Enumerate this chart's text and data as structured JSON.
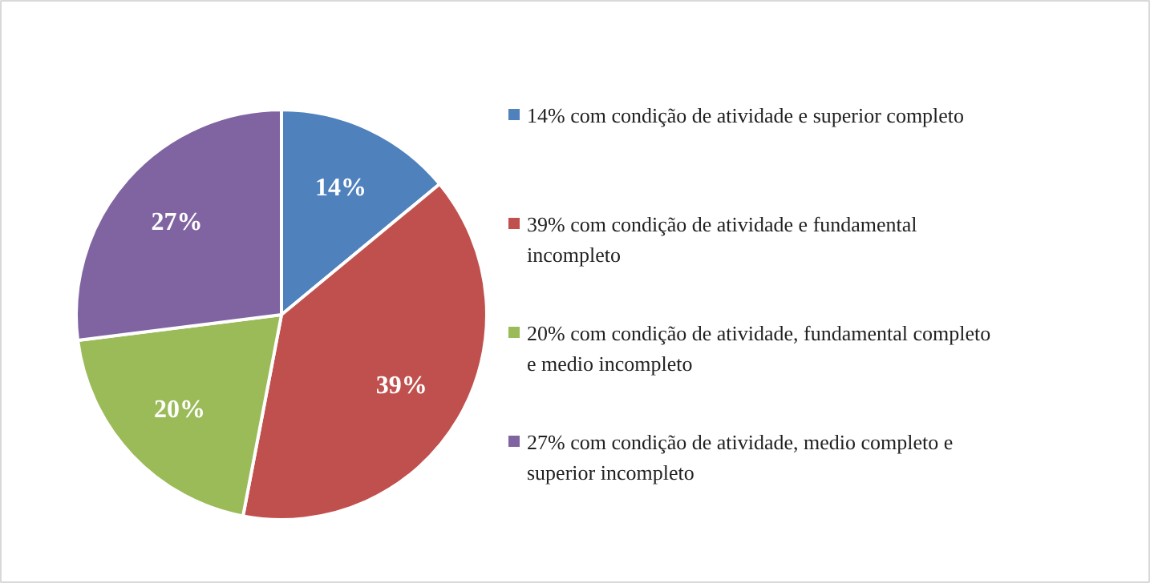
{
  "chart_data": {
    "type": "pie",
    "categories": [
      "14% com condição de atividade e superior completo",
      "39% com condição de atividade e fundamental incompleto",
      "20% com condição de atividade, fundamental completo e medio incompleto",
      "27% com condição de atividade, medio completo e superior incompleto"
    ],
    "values": [
      14,
      39,
      20,
      27
    ],
    "colors": [
      "#4f81bd",
      "#c0504d",
      "#9bbb59",
      "#8064a2"
    ],
    "value_labels": [
      "14%",
      "39%",
      "20%",
      "27%"
    ],
    "legend": "right"
  }
}
